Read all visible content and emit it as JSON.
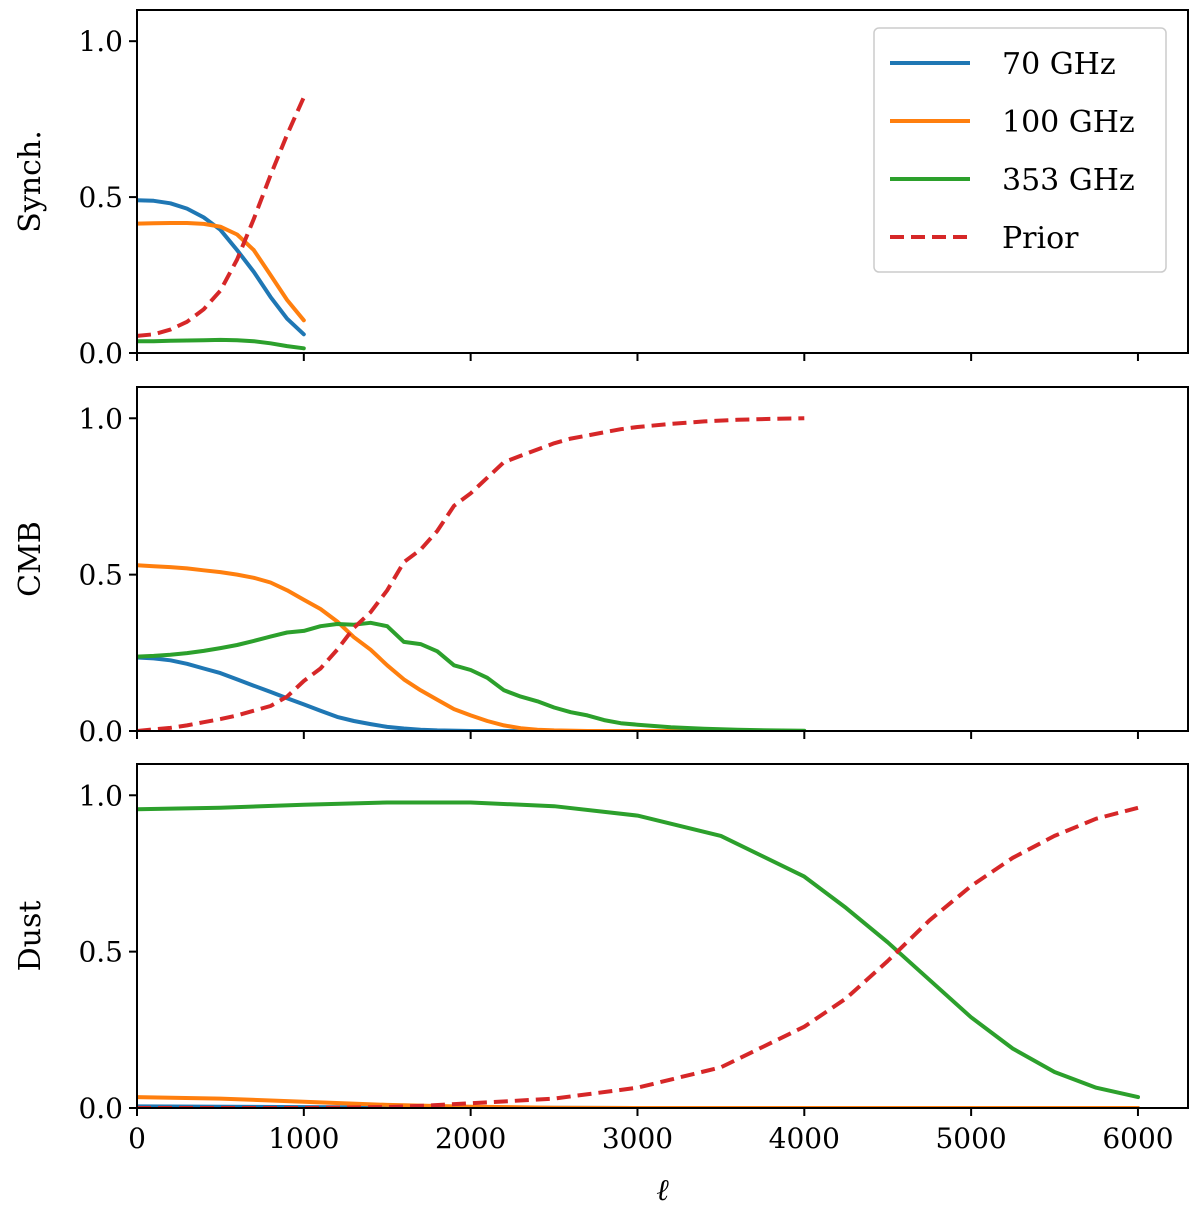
{
  "chart_data": {
    "type": "line",
    "xlabel": "ℓ",
    "xlim": [
      0,
      6300
    ],
    "xticks": [
      0,
      1000,
      2000,
      3000,
      4000,
      5000,
      6000
    ],
    "xtick_labels": [
      "0",
      "1000",
      "2000",
      "3000",
      "4000",
      "5000",
      "6000"
    ],
    "shared_x": true,
    "colors": {
      "70 GHz": "#1f77b4",
      "100 GHz": "#ff7f0e",
      "353 GHz": "#2ca02c",
      "Prior": "#d62728"
    },
    "legend": {
      "location": "upper right of top panel",
      "entries": [
        {
          "label": "70 GHz",
          "color": "#1f77b4",
          "style": "solid"
        },
        {
          "label": "100 GHz",
          "color": "#ff7f0e",
          "style": "solid"
        },
        {
          "label": "353 GHz",
          "color": "#2ca02c",
          "style": "solid"
        },
        {
          "label": "Prior",
          "color": "#d62728",
          "style": "dashed"
        }
      ]
    },
    "panels": [
      {
        "ylabel": "Synch.",
        "ylim": [
          0,
          1.1
        ],
        "yticks": [
          0.0,
          0.5,
          1.0
        ],
        "ytick_labels": [
          "0.0",
          "0.5",
          "1.0"
        ],
        "series": [
          {
            "name": "70 GHz",
            "style": "solid",
            "x": [
              0,
              100,
              200,
              300,
              400,
              500,
              600,
              700,
              800,
              900,
              1000
            ],
            "y": [
              0.49,
              0.488,
              0.48,
              0.463,
              0.435,
              0.395,
              0.33,
              0.26,
              0.18,
              0.11,
              0.06
            ]
          },
          {
            "name": "100 GHz",
            "style": "solid",
            "x": [
              0,
              100,
              200,
              300,
              400,
              500,
              600,
              700,
              800,
              900,
              1000
            ],
            "y": [
              0.415,
              0.416,
              0.417,
              0.417,
              0.414,
              0.405,
              0.38,
              0.33,
              0.25,
              0.17,
              0.105
            ]
          },
          {
            "name": "353 GHz",
            "style": "solid",
            "x": [
              0,
              100,
              200,
              300,
              400,
              500,
              600,
              700,
              800,
              900,
              1000
            ],
            "y": [
              0.038,
              0.038,
              0.039,
              0.04,
              0.041,
              0.042,
              0.041,
              0.038,
              0.031,
              0.022,
              0.015
            ]
          },
          {
            "name": "Prior",
            "style": "dashed",
            "x": [
              0,
              100,
              200,
              300,
              400,
              500,
              600,
              700,
              800,
              900,
              1000
            ],
            "y": [
              0.055,
              0.06,
              0.075,
              0.1,
              0.14,
              0.2,
              0.3,
              0.43,
              0.57,
              0.7,
              0.82
            ]
          }
        ]
      },
      {
        "ylabel": "CMB",
        "ylim": [
          0,
          1.1
        ],
        "yticks": [
          0.0,
          0.5,
          1.0
        ],
        "ytick_labels": [
          "0.0",
          "0.5",
          "1.0"
        ],
        "series": [
          {
            "name": "70 GHz",
            "style": "solid",
            "x": [
              0,
              100,
              200,
              300,
              400,
              500,
              600,
              700,
              800,
              900,
              1000,
              1100,
              1200,
              1300,
              1400,
              1500,
              1600,
              1700,
              1800,
              2000,
              2500,
              3000,
              4000
            ],
            "y": [
              0.235,
              0.232,
              0.226,
              0.215,
              0.2,
              0.185,
              0.165,
              0.145,
              0.125,
              0.105,
              0.085,
              0.065,
              0.045,
              0.032,
              0.022,
              0.013,
              0.008,
              0.004,
              0.002,
              0.0,
              0.0,
              0.0,
              0.0
            ]
          },
          {
            "name": "100 GHz",
            "style": "solid",
            "x": [
              0,
              100,
              200,
              300,
              400,
              500,
              600,
              700,
              800,
              900,
              1000,
              1100,
              1200,
              1300,
              1400,
              1500,
              1600,
              1700,
              1800,
              1900,
              2000,
              2100,
              2200,
              2300,
              2400,
              2500,
              2700,
              3000,
              4000
            ],
            "y": [
              0.53,
              0.527,
              0.524,
              0.52,
              0.514,
              0.508,
              0.5,
              0.49,
              0.475,
              0.45,
              0.42,
              0.39,
              0.35,
              0.3,
              0.26,
              0.21,
              0.165,
              0.13,
              0.1,
              0.07,
              0.05,
              0.032,
              0.018,
              0.009,
              0.004,
              0.002,
              0.0,
              0.0,
              0.0
            ]
          },
          {
            "name": "353 GHz",
            "style": "solid",
            "x": [
              0,
              100,
              200,
              300,
              400,
              500,
              600,
              700,
              800,
              900,
              1000,
              1100,
              1200,
              1300,
              1400,
              1500,
              1600,
              1700,
              1800,
              1900,
              2000,
              2100,
              2200,
              2300,
              2400,
              2500,
              2600,
              2700,
              2800,
              2900,
              3000,
              3200,
              3400,
              3600,
              3800,
              4000
            ],
            "y": [
              0.238,
              0.24,
              0.244,
              0.249,
              0.256,
              0.265,
              0.275,
              0.288,
              0.302,
              0.315,
              0.32,
              0.335,
              0.342,
              0.34,
              0.346,
              0.335,
              0.285,
              0.278,
              0.255,
              0.21,
              0.195,
              0.17,
              0.13,
              0.11,
              0.095,
              0.075,
              0.06,
              0.05,
              0.035,
              0.025,
              0.02,
              0.012,
              0.007,
              0.004,
              0.002,
              0.001
            ]
          },
          {
            "name": "Prior",
            "style": "dashed",
            "x": [
              0,
              100,
              200,
              300,
              400,
              500,
              600,
              700,
              800,
              900,
              1000,
              1100,
              1200,
              1300,
              1400,
              1500,
              1600,
              1700,
              1800,
              1900,
              2000,
              2100,
              2200,
              2300,
              2400,
              2500,
              2600,
              2700,
              2800,
              2900,
              3000,
              3200,
              3400,
              3600,
              3800,
              4000
            ],
            "y": [
              0.0,
              0.005,
              0.01,
              0.018,
              0.028,
              0.038,
              0.05,
              0.065,
              0.08,
              0.11,
              0.16,
              0.2,
              0.26,
              0.33,
              0.38,
              0.45,
              0.54,
              0.58,
              0.64,
              0.72,
              0.76,
              0.81,
              0.86,
              0.88,
              0.9,
              0.92,
              0.935,
              0.945,
              0.955,
              0.965,
              0.972,
              0.982,
              0.99,
              0.995,
              0.998,
              1.0
            ]
          }
        ]
      },
      {
        "ylabel": "Dust",
        "ylim": [
          0,
          1.1
        ],
        "yticks": [
          0.0,
          0.5,
          1.0
        ],
        "ytick_labels": [
          "0.0",
          "0.5",
          "1.0"
        ],
        "series": [
          {
            "name": "70 GHz",
            "style": "solid",
            "x": [
              0,
              1000,
              2000,
              3000,
              4000,
              5000,
              6000
            ],
            "y": [
              0.005,
              0.003,
              0.001,
              0.0,
              0.0,
              0.0,
              0.0
            ]
          },
          {
            "name": "100 GHz",
            "style": "solid",
            "x": [
              0,
              500,
              1000,
              1500,
              2000,
              2500,
              3000,
              4000,
              5000,
              6000
            ],
            "y": [
              0.035,
              0.03,
              0.02,
              0.01,
              0.004,
              0.001,
              0.0,
              0.0,
              0.0,
              0.0
            ]
          },
          {
            "name": "353 GHz",
            "style": "solid",
            "x": [
              0,
              500,
              1000,
              1500,
              2000,
              2500,
              3000,
              3500,
              4000,
              4250,
              4500,
              4750,
              5000,
              5250,
              5500,
              5750,
              6000
            ],
            "y": [
              0.955,
              0.96,
              0.97,
              0.977,
              0.977,
              0.965,
              0.935,
              0.87,
              0.74,
              0.64,
              0.53,
              0.41,
              0.29,
              0.19,
              0.115,
              0.065,
              0.035
            ]
          },
          {
            "name": "Prior",
            "style": "dashed",
            "x": [
              0,
              500,
              1000,
              1500,
              1750,
              2000,
              2500,
              3000,
              3500,
              4000,
              4250,
              4500,
              4750,
              5000,
              5250,
              5500,
              5750,
              6000
            ],
            "y": [
              0.0,
              0.0,
              0.0,
              0.003,
              0.008,
              0.015,
              0.03,
              0.065,
              0.13,
              0.26,
              0.35,
              0.47,
              0.6,
              0.71,
              0.8,
              0.87,
              0.925,
              0.96
            ]
          }
        ]
      }
    ]
  }
}
